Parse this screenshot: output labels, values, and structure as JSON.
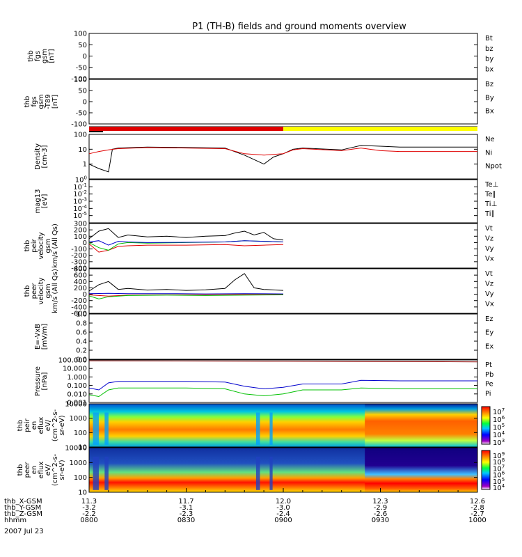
{
  "title": "P1 (TH-B) fields and ground moments overview",
  "colors": {
    "black": "#000000",
    "red": "#e00000",
    "green": "#00c000",
    "blue": "#0000cc",
    "yellow": "#ffff00",
    "darkred": "#8b0000"
  },
  "chart_data": {
    "type": "line",
    "x_range_hours": [
      8.0,
      10.0
    ],
    "panels": [
      {
        "id": "fgs",
        "ylabel": [
          "thb",
          "fgs",
          "gsm",
          "[nT]"
        ],
        "ylim": [
          -100,
          100
        ],
        "ticks": [
          "100",
          "50",
          "0",
          "-50",
          "-100"
        ],
        "tick_values": [
          100,
          50,
          0,
          -50,
          -100
        ],
        "scale": "linear",
        "legend": [
          {
            "label": "Bt",
            "color": "black"
          },
          {
            "label": "bz",
            "color": "red"
          },
          {
            "label": "by",
            "color": "green"
          },
          {
            "label": "bx",
            "color": "blue"
          }
        ],
        "series": []
      },
      {
        "id": "fgs_t89",
        "ylabel": [
          "thb",
          "fgs",
          "gsm",
          "-T89",
          "[nT]"
        ],
        "ylim": [
          -100,
          100
        ],
        "ticks": [
          "100",
          "50",
          "0",
          "-50",
          "-100"
        ],
        "tick_values": [
          100,
          50,
          0,
          -50,
          -100
        ],
        "scale": "linear",
        "legend": [
          {
            "label": "Bz",
            "color": "red"
          },
          {
            "label": "By",
            "color": "green"
          },
          {
            "label": "Bx",
            "color": "blue"
          }
        ],
        "series": []
      },
      {
        "id": "mode_bar",
        "segments": [
          {
            "start": 8.0,
            "end": 9.0,
            "color": "red"
          },
          {
            "start": 9.0,
            "end": 10.0,
            "color": "yellow"
          }
        ]
      },
      {
        "id": "density",
        "ylabel": [
          "Density",
          "[cm-3]"
        ],
        "ylim": [
          0.1,
          100
        ],
        "ticks": [
          "100",
          "10",
          "1"
        ],
        "tick_values": [
          100,
          10,
          1
        ],
        "scale": "log",
        "legend": [
          {
            "label": "Ne",
            "color": "red"
          },
          {
            "label": "Ni",
            "color": "black"
          },
          {
            "label": "Npot",
            "color": "blue"
          }
        ],
        "series": [
          {
            "name": "Ni",
            "color": "black",
            "x": [
              8.0,
              8.05,
              8.1,
              8.12,
              8.15,
              8.3,
              8.5,
              8.7,
              8.8,
              8.85,
              8.9,
              8.95,
              9.0,
              9.05,
              9.1,
              9.3,
              9.4,
              9.5,
              9.6,
              9.8,
              10.0
            ],
            "y": [
              1.0,
              0.5,
              0.3,
              10,
              12,
              14,
              13,
              12,
              4,
              2,
              1,
              3,
              5,
              10,
              12,
              9,
              18,
              16,
              14,
              14,
              14
            ]
          },
          {
            "name": "Ne",
            "color": "red",
            "x": [
              8.0,
              8.05,
              8.1,
              8.15,
              8.3,
              8.5,
              8.7,
              8.8,
              8.9,
              9.0,
              9.05,
              9.1,
              9.3,
              9.4,
              9.5,
              9.6,
              9.8,
              10.0
            ],
            "y": [
              5,
              7,
              9,
              11,
              13,
              12,
              11,
              5,
              4,
              5,
              9,
              11,
              8,
              12,
              8,
              7,
              7,
              7
            ]
          }
        ]
      },
      {
        "id": "mag",
        "ylabel": [
          "mag13",
          "[eV]"
        ],
        "ylim": [
          1e-06,
          1
        ],
        "ticks": [
          "10^0",
          "10^-1",
          "10^-2",
          "10^-3",
          "10^-4",
          "10^-5"
        ],
        "tick_values": [
          1,
          0.1,
          0.01,
          0.001,
          0.0001,
          1e-05
        ],
        "scale": "log",
        "legend": [
          {
            "label": "Te⊥",
            "color": "red"
          },
          {
            "label": "Te∥",
            "color": "black"
          },
          {
            "label": "Ti⊥",
            "color": "blue"
          },
          {
            "label": "Ti∥",
            "color": "green"
          }
        ],
        "series": []
      },
      {
        "id": "peir_v",
        "ylabel": [
          "thb",
          "peir",
          "velocity",
          "gsm",
          "km/s (All Qs)"
        ],
        "ylim": [
          -400,
          300
        ],
        "ticks": [
          "300",
          "200",
          "100",
          "0",
          "-100",
          "-200",
          "-300",
          "-400"
        ],
        "tick_values": [
          300,
          200,
          100,
          0,
          -100,
          -200,
          -300,
          -400
        ],
        "scale": "linear",
        "legend": [
          {
            "label": "Vt",
            "color": "black"
          },
          {
            "label": "Vz",
            "color": "red"
          },
          {
            "label": "Vy",
            "color": "green"
          },
          {
            "label": "Vx",
            "color": "blue"
          }
        ],
        "series": [
          {
            "name": "Vt",
            "color": "black",
            "x": [
              8.0,
              8.05,
              8.1,
              8.15,
              8.2,
              8.3,
              8.4,
              8.5,
              8.6,
              8.7,
              8.75,
              8.8,
              8.85,
              8.9,
              8.95,
              9.0
            ],
            "y": [
              60,
              180,
              220,
              80,
              120,
              90,
              100,
              80,
              100,
              110,
              150,
              180,
              120,
              160,
              60,
              40
            ]
          },
          {
            "name": "Vz",
            "color": "red",
            "x": [
              8.0,
              8.05,
              8.1,
              8.15,
              8.2,
              8.3,
              8.5,
              8.7,
              8.8,
              8.9,
              9.0
            ],
            "y": [
              -20,
              -150,
              -120,
              -60,
              -50,
              -40,
              -40,
              -30,
              -50,
              -40,
              -30
            ]
          },
          {
            "name": "Vy",
            "color": "green",
            "x": [
              8.0,
              8.05,
              8.1,
              8.15,
              8.2,
              8.3,
              8.5,
              8.7,
              8.8,
              8.9,
              9.0
            ],
            "y": [
              0,
              -80,
              -120,
              -20,
              0,
              -10,
              0,
              10,
              30,
              20,
              10
            ]
          },
          {
            "name": "Vx",
            "color": "blue",
            "x": [
              8.0,
              8.05,
              8.1,
              8.15,
              8.2,
              8.3,
              8.5,
              8.7,
              8.8,
              8.9,
              9.0
            ],
            "y": [
              10,
              30,
              -40,
              20,
              10,
              0,
              5,
              10,
              30,
              20,
              10
            ]
          }
        ]
      },
      {
        "id": "peer_v",
        "ylabel": [
          "thb",
          "peer",
          "velocity",
          "gsm",
          "km/s (All Qs)"
        ],
        "ylim": [
          -600,
          800
        ],
        "ticks": [
          "800",
          "600",
          "400",
          "200",
          "0",
          "-200",
          "-400",
          "-600"
        ],
        "tick_values": [
          800,
          600,
          400,
          200,
          0,
          -200,
          -400,
          -600
        ],
        "scale": "linear",
        "legend": [
          {
            "label": "Vt",
            "color": "black"
          },
          {
            "label": "Vz",
            "color": "red"
          },
          {
            "label": "Vy",
            "color": "green"
          },
          {
            "label": "Vx",
            "color": "blue"
          }
        ],
        "series": [
          {
            "name": "Vt",
            "color": "black",
            "x": [
              8.0,
              8.05,
              8.1,
              8.15,
              8.2,
              8.3,
              8.4,
              8.5,
              8.6,
              8.7,
              8.75,
              8.8,
              8.85,
              8.9,
              9.0
            ],
            "y": [
              100,
              300,
              400,
              150,
              180,
              130,
              150,
              120,
              140,
              180,
              450,
              650,
              200,
              150,
              120
            ]
          },
          {
            "name": "Vz",
            "color": "red",
            "x": [
              8.0,
              8.1,
              8.2,
              8.4,
              8.6,
              8.8,
              9.0
            ],
            "y": [
              -20,
              -60,
              -30,
              -20,
              -20,
              -10,
              -10
            ]
          },
          {
            "name": "Vy",
            "color": "green",
            "x": [
              8.0,
              8.05,
              8.1,
              8.2,
              8.4,
              8.6,
              8.8,
              9.0
            ],
            "y": [
              -50,
              -150,
              -80,
              -40,
              -30,
              -40,
              -30,
              -20
            ]
          },
          {
            "name": "Vx",
            "color": "blue",
            "x": [
              8.0,
              8.1,
              8.2,
              8.4,
              8.6,
              8.8,
              9.0
            ],
            "y": [
              20,
              30,
              20,
              20,
              10,
              20,
              10
            ]
          }
        ]
      },
      {
        "id": "efield",
        "ylabel": [
          "E=-VxB",
          "[mV/m]"
        ],
        "ylim": [
          0,
          1
        ],
        "ticks": [
          "1.0",
          "0.8",
          "0.6",
          "0.4",
          "0.2",
          "0.0"
        ],
        "tick_values": [
          1.0,
          0.8,
          0.6,
          0.4,
          0.2,
          0.0
        ],
        "scale": "linear",
        "legend": [
          {
            "label": "Ez",
            "color": "red"
          },
          {
            "label": "Ey",
            "color": "green"
          },
          {
            "label": "Ex",
            "color": "blue"
          }
        ],
        "series": []
      },
      {
        "id": "pressure",
        "ylabel": [
          "Pressure",
          "[nPa]"
        ],
        "ylim": [
          0.001,
          100
        ],
        "ticks": [
          "100.000",
          "10.000",
          "1.000",
          "0.100",
          "0.010",
          "0.001"
        ],
        "tick_values": [
          100,
          10,
          1,
          0.1,
          0.01,
          0.001
        ],
        "scale": "log",
        "legend": [
          {
            "label": "Pt",
            "color": "black"
          },
          {
            "label": "Pb",
            "color": "red"
          },
          {
            "label": "Pe",
            "color": "green"
          },
          {
            "label": "Pi",
            "color": "blue"
          }
        ],
        "series": [
          {
            "name": "Pb",
            "color": "darkred",
            "x": [
              8.0,
              9.0,
              10.0
            ],
            "y": [
              80,
              70,
              60
            ]
          },
          {
            "name": "Pi",
            "color": "blue",
            "x": [
              8.0,
              8.05,
              8.1,
              8.15,
              8.3,
              8.5,
              8.7,
              8.8,
              8.9,
              9.0,
              9.1,
              9.3,
              9.4,
              9.6,
              9.8,
              10.0
            ],
            "y": [
              0.05,
              0.03,
              0.2,
              0.3,
              0.3,
              0.3,
              0.25,
              0.08,
              0.04,
              0.06,
              0.15,
              0.15,
              0.4,
              0.35,
              0.35,
              0.35
            ]
          },
          {
            "name": "Pe",
            "color": "green",
            "x": [
              8.0,
              8.05,
              8.1,
              8.15,
              8.3,
              8.5,
              8.7,
              8.8,
              8.9,
              9.0,
              9.1,
              9.3,
              9.4,
              9.6,
              9.8,
              10.0
            ],
            "y": [
              0.008,
              0.005,
              0.03,
              0.05,
              0.05,
              0.05,
              0.04,
              0.01,
              0.006,
              0.01,
              0.03,
              0.03,
              0.05,
              0.04,
              0.04,
              0.04
            ]
          }
        ]
      },
      {
        "id": "peir_spec",
        "ylabel": [
          "thb",
          "peir",
          "en",
          "eflux",
          "eV/",
          "(cm^2-s-",
          "sr-eV)"
        ],
        "ylim": [
          10,
          10000
        ],
        "ticks": [
          "10000",
          "1000",
          "100",
          "10"
        ],
        "tick_values": [
          10000,
          1000,
          100,
          10
        ],
        "scale": "log",
        "colorbar": {
          "labels": [
            "10^7",
            "10^6",
            "10^5",
            "10^4",
            "10^3"
          ]
        }
      },
      {
        "id": "peer_spec",
        "ylabel": [
          "thb",
          "peer",
          "en",
          "eflux",
          "eV/",
          "(cm^2-s-",
          "sr-eV)"
        ],
        "ylim": [
          10,
          10000
        ],
        "ticks": [
          "10000",
          "1000",
          "100",
          "10"
        ],
        "tick_values": [
          10000,
          1000,
          100,
          10
        ],
        "scale": "log",
        "colorbar": {
          "labels": [
            "10^9",
            "10^8",
            "10^7",
            "10^6",
            "10^5",
            "10^4"
          ]
        }
      }
    ],
    "x_axis_rows": [
      {
        "label": "thb_X-GSM",
        "values": [
          "11.3",
          "11.7",
          "12.0",
          "12.3",
          "12.6"
        ]
      },
      {
        "label": "thb_Y-GSM",
        "values": [
          "-3.2",
          "-3.1",
          "-3.0",
          "-2.9",
          "-2.8"
        ]
      },
      {
        "label": "thb_Z-GSM",
        "values": [
          "-2.2",
          "-2.3",
          "-2.4",
          "-2.6",
          "-2.7"
        ]
      },
      {
        "label": "hhmm",
        "values": [
          "0800",
          "0830",
          "0900",
          "0930",
          "1000"
        ]
      }
    ],
    "date_label": "2007 Jul 23"
  }
}
